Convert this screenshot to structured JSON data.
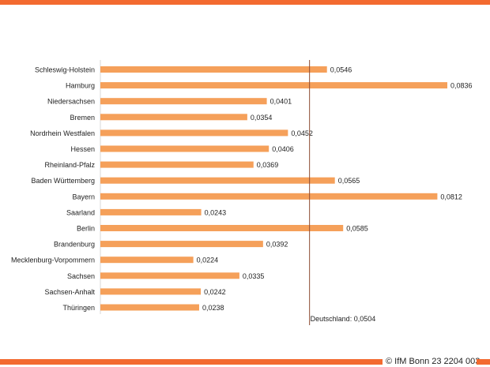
{
  "colors": {
    "accent": "#f36a30",
    "bar": "#f5a05a",
    "reference_line": "#8b4a32",
    "text": "#222222"
  },
  "footer": {
    "text": "© IfM Bonn 23 2204 003"
  },
  "chart_data": {
    "type": "bar",
    "orientation": "horizontal",
    "categories": [
      "Schleswig-Holstein",
      "Hamburg",
      "Niedersachsen",
      "Bremen",
      "Nordrhein Westfalen",
      "Hessen",
      "Rheinland-Pfalz",
      "Baden Württemberg",
      "Bayern",
      "Saarland",
      "Berlin",
      "Brandenburg",
      "Mecklenburg-Vorpommern",
      "Sachsen",
      "Sachsen-Anhalt",
      "Thüringen"
    ],
    "values": [
      0.0546,
      0.0836,
      0.0401,
      0.0354,
      0.0452,
      0.0406,
      0.0369,
      0.0565,
      0.0812,
      0.0243,
      0.0585,
      0.0392,
      0.0224,
      0.0335,
      0.0242,
      0.0238
    ],
    "value_labels": [
      "0,0546",
      "0,0836",
      "0,0401",
      "0,0354",
      "0,0452",
      "0,0406",
      "0,0369",
      "0,0565",
      "0,0812",
      "0,0243",
      "0,0585",
      "0,0392",
      "0,0224",
      "0,0335",
      "0,0242",
      "0,0238"
    ],
    "xlim": [
      0,
      0.0836
    ],
    "reference": {
      "label": "Deutschland:",
      "value": 0.0504,
      "value_label": "0,0504"
    },
    "grid": false,
    "legend": "none"
  }
}
